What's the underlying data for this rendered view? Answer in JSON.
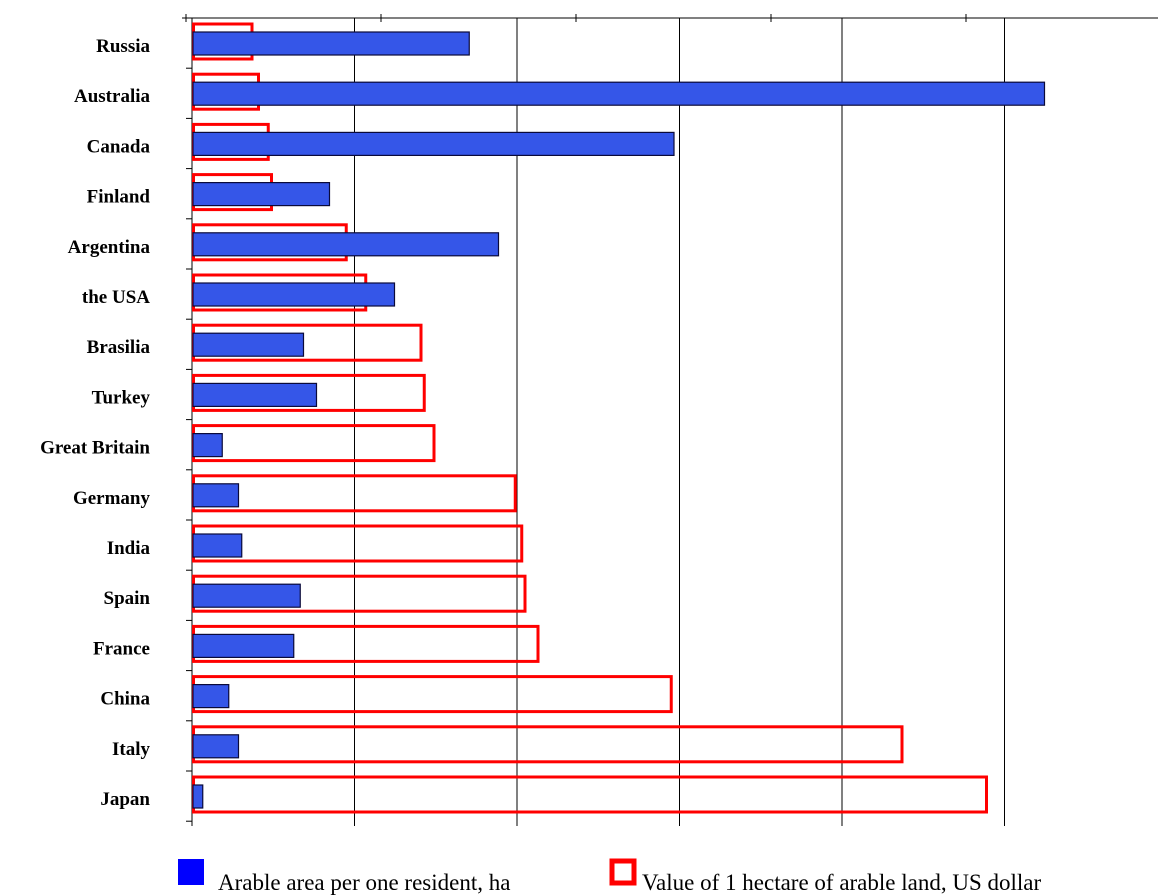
{
  "chart_data": {
    "type": "bar",
    "orientation": "horizontal",
    "title": "",
    "xlabel": "",
    "ylabel": "",
    "categories": [
      "Russia",
      "Australia",
      "Canada",
      "Finland",
      "Argentina",
      "the USA",
      "Brasilia",
      "Turkey",
      "Great Britain",
      "Germany",
      "India",
      "Spain",
      "France",
      "China",
      "Italy",
      "Japan"
    ],
    "series": [
      {
        "name": "Arable area per one resident, ha",
        "style": "filled",
        "color": "#3556e8",
        "values": [
          85,
          262,
          148,
          42,
          94,
          62,
          34,
          38,
          9,
          14,
          15,
          33,
          31,
          11,
          14,
          3
        ]
      },
      {
        "name": "Value of 1 hectare of arable land, US dollar",
        "style": "outline",
        "color": "#ff0000",
        "values": [
          18,
          20,
          23,
          24,
          47,
          53,
          70,
          71,
          74,
          99,
          101,
          102,
          106,
          147,
          218,
          244
        ]
      }
    ],
    "xlim": [
      0,
      290
    ],
    "x_grid": [
      50,
      100,
      150,
      200,
      250
    ],
    "x_top_ticks": [
      0,
      60,
      120,
      180,
      240
    ],
    "grid": true,
    "legend_position": "bottom"
  },
  "colors": {
    "bar_fill": "#3556e8",
    "bar_stroke": "#0a0a3a",
    "outline_bar": "#ff0000",
    "axis": "#000000",
    "grid": "#000000"
  }
}
